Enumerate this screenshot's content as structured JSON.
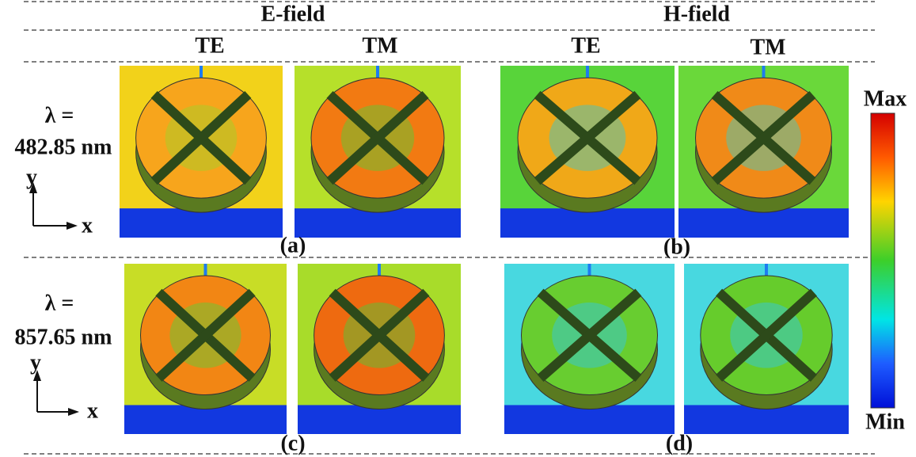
{
  "headers": {
    "groups": [
      "E-field",
      "H-field"
    ],
    "modes": [
      "TE",
      "TM",
      "TE",
      "TM"
    ]
  },
  "rows": [
    {
      "wavelength_label": "λ =",
      "wavelength": "482.85 nm",
      "axis_y": "y",
      "axis_x": "x",
      "panel_labels": [
        "(a)",
        "(b)"
      ]
    },
    {
      "wavelength_label": "λ =",
      "wavelength": "857.65 nm",
      "axis_y": "y",
      "axis_x": "x",
      "panel_labels": [
        "(c)",
        "(d)"
      ]
    }
  ],
  "colorbar": {
    "max": "Max",
    "min": "Min"
  }
}
